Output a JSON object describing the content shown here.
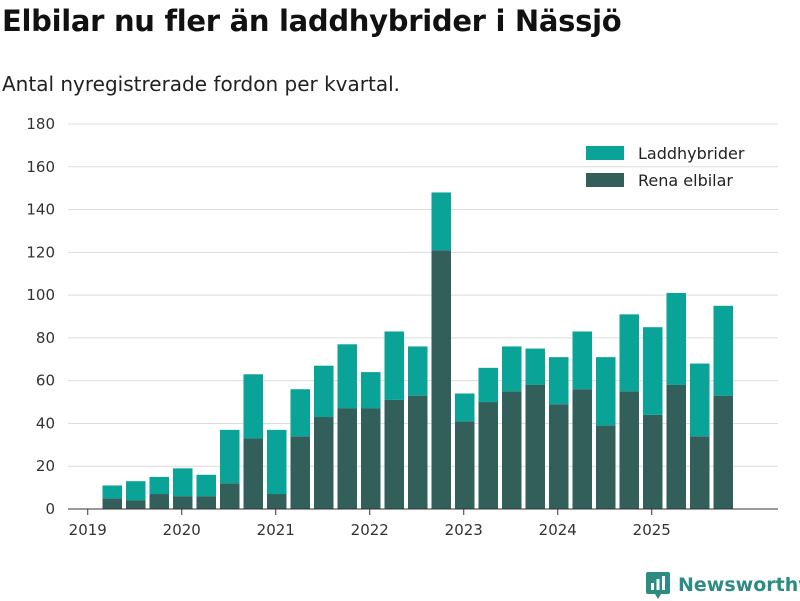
{
  "title": "Elbilar nu fler än laddhybrider i Nässjö",
  "subtitle": "Antal nyregistrerade fordon per kvartal.",
  "brand": {
    "name": "Newsworthy",
    "icon": "newsworthy-logo-icon",
    "color": "#2e8b82"
  },
  "chart_data": {
    "type": "bar",
    "stacked": true,
    "title": "Elbilar nu fler än laddhybrider i Nässjö",
    "subtitle": "Antal nyregistrerade fordon per kvartal.",
    "xlabel": "",
    "ylabel": "",
    "ylim": [
      0,
      180
    ],
    "yticks": [
      0,
      20,
      40,
      60,
      80,
      100,
      120,
      140,
      160,
      180
    ],
    "grid": true,
    "legend_position": "top-right",
    "categories": [
      "2019 Q2",
      "2019 Q3",
      "2019 Q4",
      "2020 Q1",
      "2020 Q2",
      "2020 Q3",
      "2020 Q4",
      "2021 Q1",
      "2021 Q2",
      "2021 Q3",
      "2021 Q4",
      "2022 Q1",
      "2022 Q2",
      "2022 Q3",
      "2022 Q4",
      "2023 Q1",
      "2023 Q2",
      "2023 Q3",
      "2023 Q4",
      "2024 Q1",
      "2024 Q2",
      "2024 Q3",
      "2024 Q4",
      "2025 Q1",
      "2025 Q2",
      "2025 Q3",
      "2025 Q4"
    ],
    "year_labels": [
      "2019",
      "2020",
      "2021",
      "2022",
      "2023",
      "2024",
      "2025"
    ],
    "series": [
      {
        "name": "Rena elbilar",
        "color": "#335f5b",
        "values": [
          5,
          4,
          7,
          6,
          6,
          12,
          33,
          7,
          34,
          43,
          47,
          47,
          51,
          53,
          121,
          41,
          50,
          55,
          58,
          49,
          56,
          39,
          55,
          44,
          58,
          34,
          53
        ]
      },
      {
        "name": "Laddhybrider",
        "color": "#0aa397",
        "values": [
          6,
          9,
          8,
          13,
          10,
          25,
          30,
          30,
          22,
          24,
          30,
          17,
          32,
          23,
          27,
          13,
          16,
          21,
          17,
          22,
          27,
          32,
          36,
          41,
          43,
          34,
          42
        ]
      }
    ],
    "legend_order": [
      "Laddhybrider",
      "Rena elbilar"
    ]
  }
}
